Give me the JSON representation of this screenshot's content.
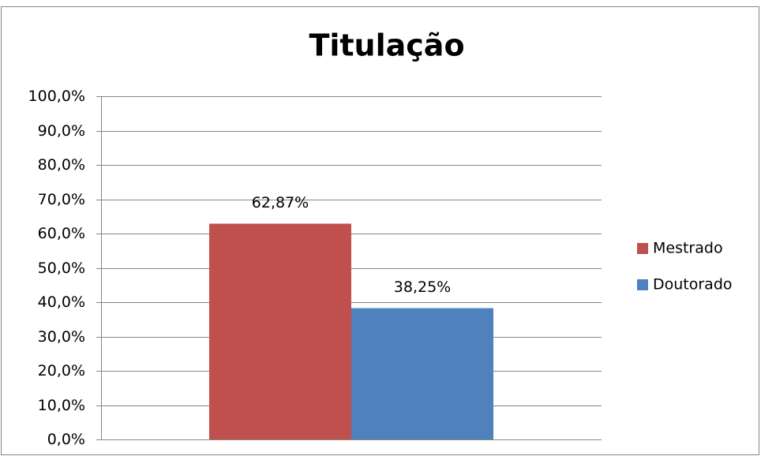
{
  "chart_data": {
    "type": "bar",
    "title": "Titulação",
    "categories": [
      null
    ],
    "series": [
      {
        "name": "Mestrado",
        "color": "#c0504d",
        "values": [
          62.87
        ],
        "value_labels": [
          "62,87%"
        ]
      },
      {
        "name": "Doutorado",
        "color": "#4f81bd",
        "values": [
          38.25
        ],
        "value_labels": [
          "38,25%"
        ]
      }
    ],
    "ylim": [
      0,
      100
    ],
    "yticks": [
      {
        "value": 0,
        "label": "0,0%"
      },
      {
        "value": 10,
        "label": "10,0%"
      },
      {
        "value": 20,
        "label": "20,0%"
      },
      {
        "value": 30,
        "label": "30,0%"
      },
      {
        "value": 40,
        "label": "40,0%"
      },
      {
        "value": 50,
        "label": "50,0%"
      },
      {
        "value": 60,
        "label": "60,0%"
      },
      {
        "value": 70,
        "label": "70,0%"
      },
      {
        "value": 80,
        "label": "80,0%"
      },
      {
        "value": 90,
        "label": "90,0%"
      },
      {
        "value": 100,
        "label": "100,0%"
      }
    ],
    "grid": true,
    "legend": "right"
  }
}
